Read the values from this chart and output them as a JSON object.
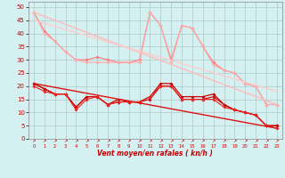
{
  "background_color": "#d4f0f0",
  "grid_color": "#b0c8c8",
  "xlabel": "Vent moyen/en rafales ( kn/h )",
  "x_ticks": [
    0,
    1,
    2,
    3,
    4,
    5,
    6,
    7,
    8,
    9,
    10,
    11,
    12,
    13,
    14,
    15,
    16,
    17,
    18,
    19,
    20,
    21,
    22,
    23
  ],
  "y_ticks": [
    0,
    5,
    10,
    15,
    20,
    25,
    30,
    35,
    40,
    45,
    50
  ],
  "ylim": [
    0,
    52
  ],
  "xlim": [
    -0.5,
    23.5
  ],
  "series": [
    {
      "color": "#ff7777",
      "linewidth": 0.8,
      "marker": "D",
      "markersize": 2.0,
      "data_x": [
        0,
        1,
        2,
        3,
        4,
        5,
        6,
        7,
        8,
        9,
        10,
        11,
        12,
        13,
        14,
        15,
        16,
        17,
        18,
        19,
        20,
        21,
        22,
        23
      ],
      "data_y": [
        48,
        41,
        37,
        33,
        30,
        30,
        31,
        30,
        29,
        29,
        30,
        48,
        43,
        30,
        43,
        42,
        35,
        29,
        26,
        25,
        21,
        20,
        13,
        13
      ]
    },
    {
      "color": "#ffaaaa",
      "linewidth": 0.8,
      "marker": "D",
      "markersize": 2.0,
      "data_x": [
        0,
        1,
        2,
        3,
        4,
        5,
        6,
        7,
        8,
        9,
        10,
        11,
        12,
        13,
        14,
        15,
        16,
        17,
        18,
        19,
        20,
        21,
        22,
        23
      ],
      "data_y": [
        48,
        40,
        37,
        33,
        30,
        29,
        29,
        29,
        29,
        29,
        29,
        48,
        43,
        29,
        43,
        42,
        35,
        28,
        26,
        25,
        21,
        20,
        13,
        13
      ]
    },
    {
      "color": "#ffbbbb",
      "linewidth": 1.0,
      "marker": null,
      "data_x": [
        0,
        23
      ],
      "data_y": [
        48,
        13
      ]
    },
    {
      "color": "#ffcccc",
      "linewidth": 1.0,
      "marker": null,
      "data_x": [
        0,
        23
      ],
      "data_y": [
        45,
        18
      ]
    },
    {
      "color": "#cc0000",
      "linewidth": 0.9,
      "marker": "D",
      "markersize": 2.0,
      "data_x": [
        0,
        1,
        2,
        3,
        4,
        5,
        6,
        7,
        8,
        9,
        10,
        11,
        12,
        13,
        14,
        15,
        16,
        17,
        18,
        19,
        20,
        21,
        22,
        23
      ],
      "data_y": [
        21,
        19,
        17,
        17,
        12,
        16,
        16,
        13,
        15,
        14,
        14,
        16,
        21,
        21,
        16,
        16,
        16,
        17,
        13,
        11,
        10,
        9,
        5,
        5
      ]
    },
    {
      "color": "#cc0000",
      "linewidth": 0.8,
      "marker": "D",
      "markersize": 2.0,
      "data_x": [
        0,
        1,
        2,
        3,
        4,
        5,
        6,
        7,
        8,
        9,
        10,
        11,
        12,
        13,
        14,
        15,
        16,
        17,
        18,
        19,
        20,
        21,
        22,
        23
      ],
      "data_y": [
        21,
        19,
        17,
        17,
        12,
        16,
        16,
        13,
        14,
        14,
        14,
        15,
        20,
        20,
        15,
        15,
        15,
        16,
        13,
        11,
        10,
        9,
        5,
        5
      ]
    },
    {
      "color": "#ee2222",
      "linewidth": 0.8,
      "marker": "D",
      "markersize": 2.0,
      "data_x": [
        0,
        1,
        2,
        3,
        4,
        5,
        6,
        7,
        8,
        9,
        10,
        11,
        12,
        13,
        14,
        15,
        16,
        17,
        18,
        19,
        20,
        21,
        22,
        23
      ],
      "data_y": [
        20,
        18,
        17,
        17,
        11,
        15,
        16,
        13,
        14,
        14,
        14,
        16,
        20,
        20,
        15,
        15,
        15,
        15,
        12,
        11,
        10,
        9,
        5,
        4
      ]
    },
    {
      "color": "#dd1111",
      "linewidth": 1.0,
      "marker": null,
      "data_x": [
        0,
        23
      ],
      "data_y": [
        21,
        4
      ]
    }
  ]
}
